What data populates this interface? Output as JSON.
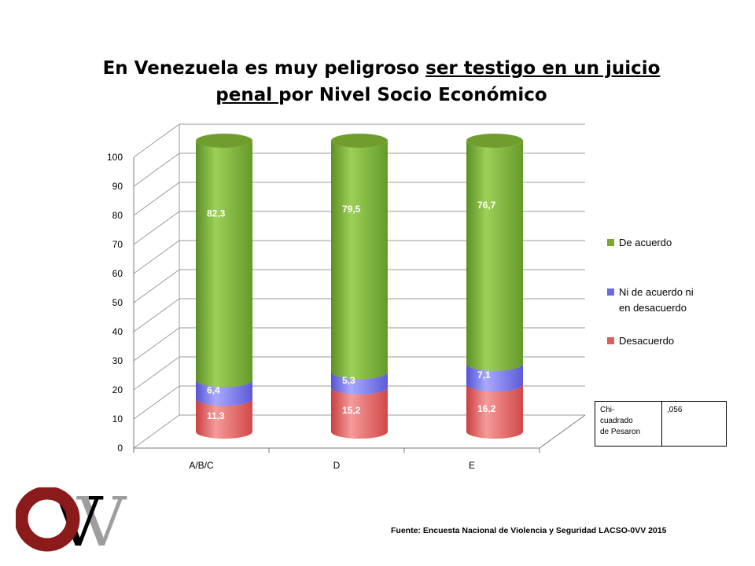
{
  "title": {
    "part1": "En Venezuela es muy peligroso ",
    "underlined": "ser testigo en un juicio penal ",
    "part2": "por Nivel Socio Económico"
  },
  "chart_data": {
    "type": "bar",
    "stacked": true,
    "style": "3d-cylinder",
    "title": "En Venezuela es muy peligroso ser testigo en un juicio penal por Nivel Socio Económico",
    "categories": [
      "A/B/C",
      "D",
      "E"
    ],
    "series": [
      {
        "name": "Desacuerdo",
        "values": [
          11.3,
          15.2,
          16.2
        ],
        "labels": [
          "11,3",
          "15,2",
          "16,2"
        ],
        "color": "#e05b5b"
      },
      {
        "name": "Ni de acuerdo ni en desacuerdo",
        "values": [
          6.4,
          5.3,
          7.1
        ],
        "labels": [
          "6,4",
          "5,3",
          "7,1"
        ],
        "color": "#6a6ae6"
      },
      {
        "name": "De acuerdo",
        "values": [
          82.3,
          79.5,
          76.7
        ],
        "labels": [
          "82,3",
          "79,5",
          "76,7"
        ],
        "color": "#77a832"
      }
    ],
    "legend_order": [
      "De acuerdo",
      "Ni de acuerdo ni en desacuerdo",
      "Desacuerdo"
    ],
    "legend_lines": {
      "De acuerdo": [
        "De acuerdo"
      ],
      "Ni de acuerdo ni en desacuerdo": [
        "Ni de acuerdo ni",
        "en desacuerdo"
      ],
      "Desacuerdo": [
        "Desacuerdo"
      ]
    },
    "ylim": [
      0,
      100
    ],
    "yticks": [
      0,
      10,
      20,
      30,
      40,
      50,
      60,
      70,
      80,
      90,
      100
    ],
    "grid": true,
    "legend": "right"
  },
  "stats": {
    "label_lines": [
      "Chi-",
      "cuadrado",
      "de Pesaron"
    ],
    "value": ",056"
  },
  "source": "Fuente: Encuesta Nacional de Violencia y Seguridad LACSO-0VV 2015",
  "logo": {
    "o": "O",
    "v": "V",
    "w": "V",
    "colors": {
      "o": "#8b1a1a",
      "w": "#b0b0b0",
      "v": "#000000"
    }
  }
}
